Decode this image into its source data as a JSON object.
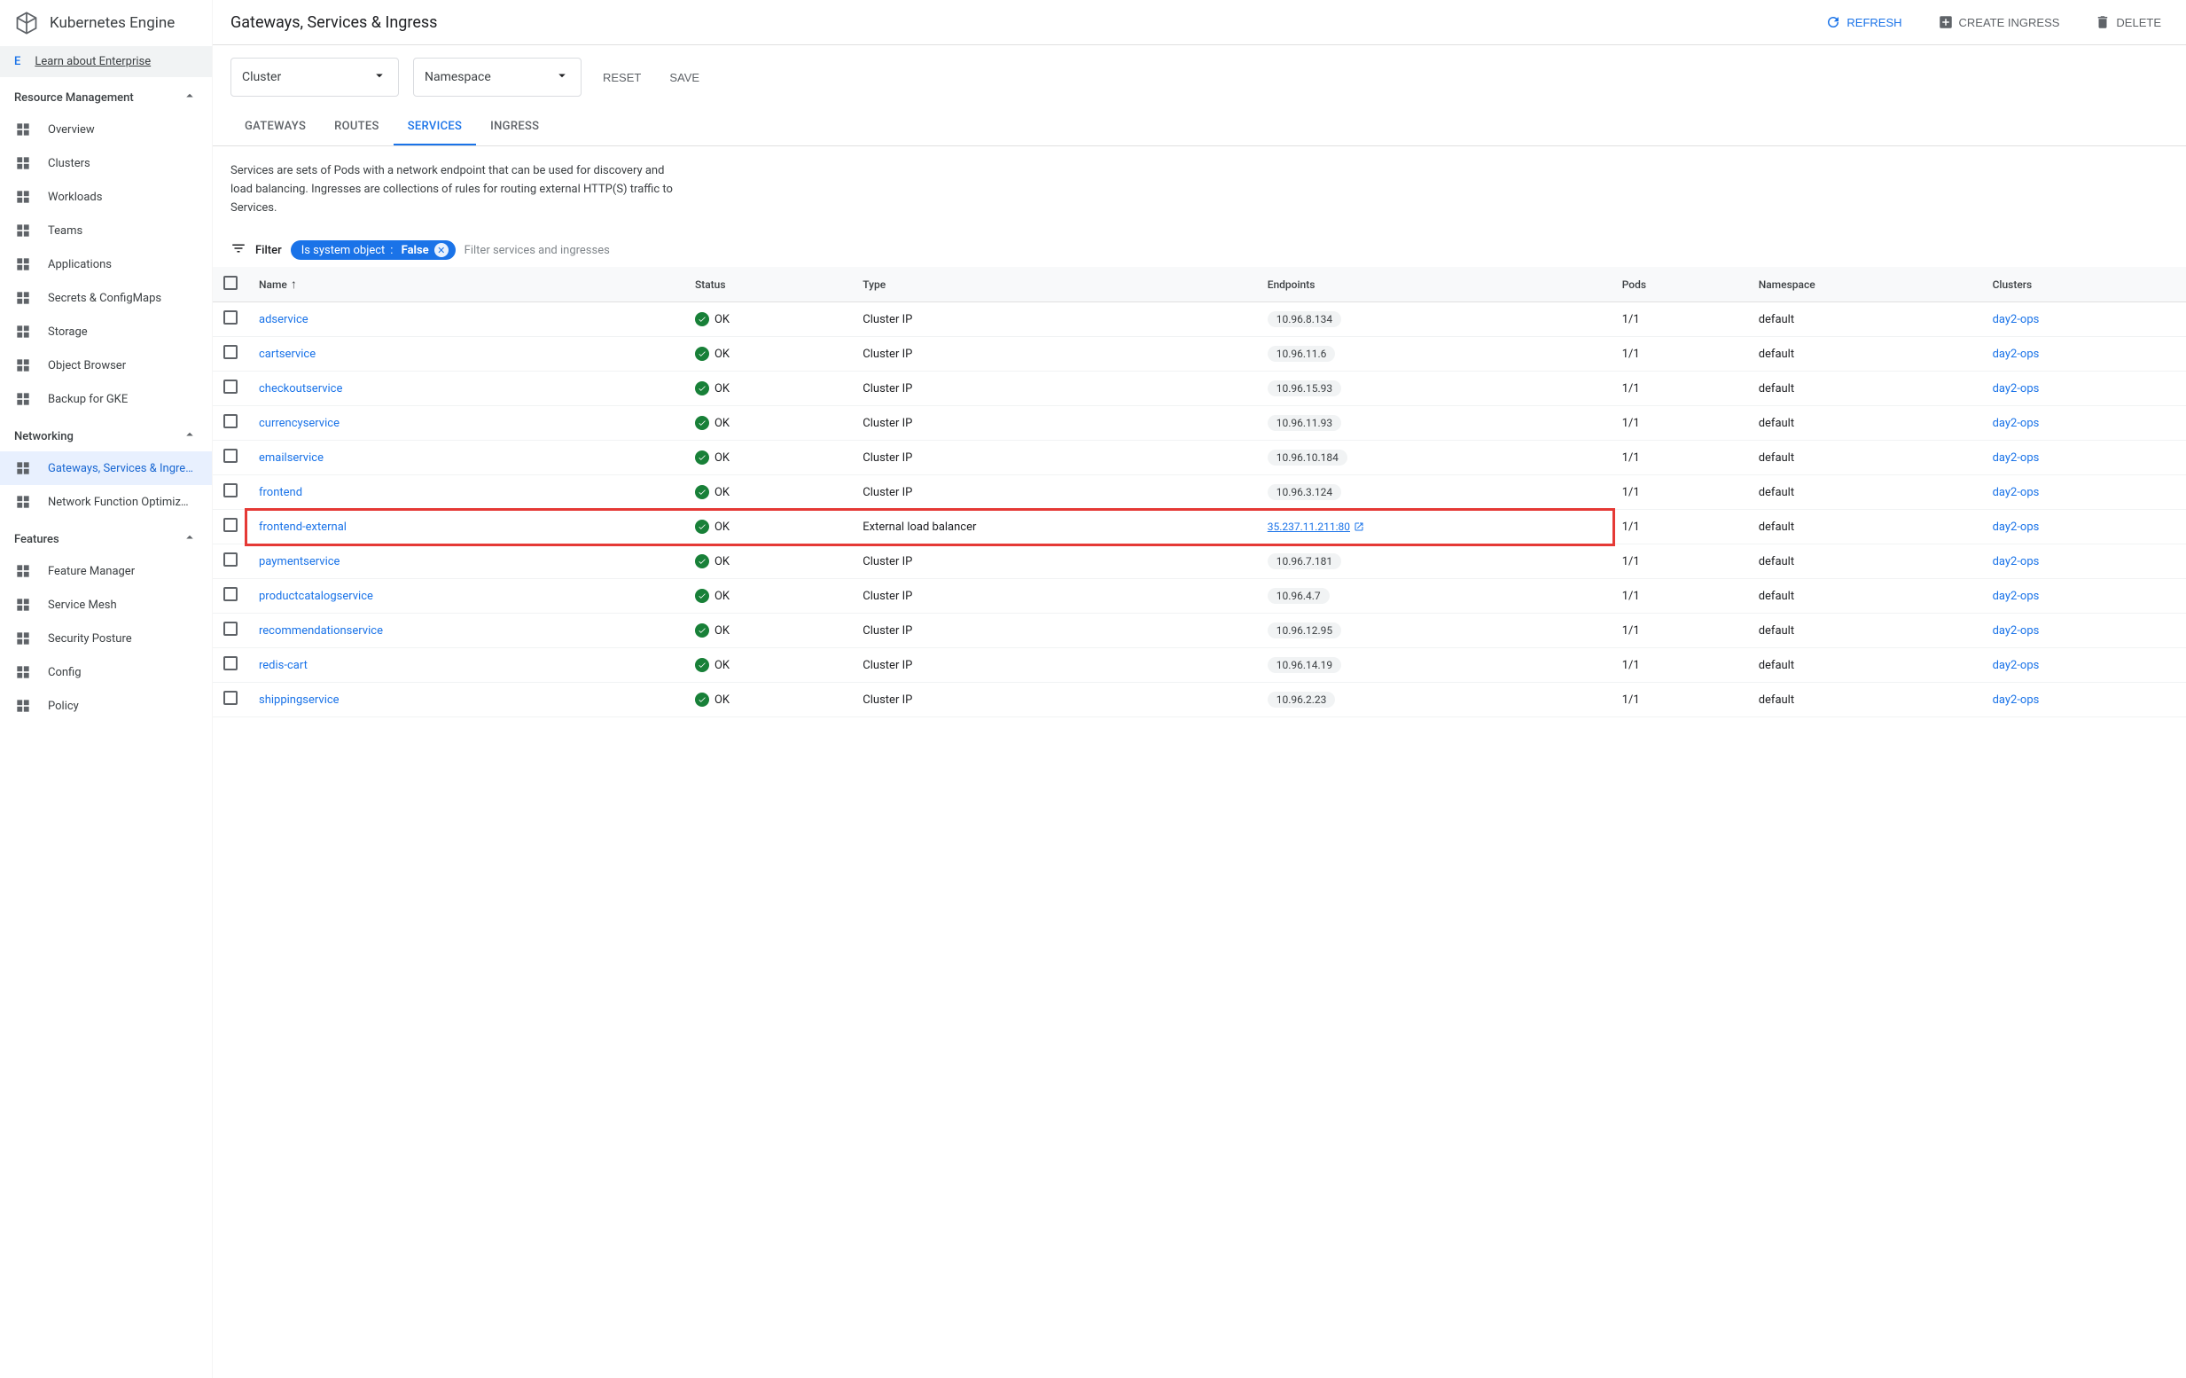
{
  "sidebar": {
    "title": "Kubernetes Engine",
    "enterprise": {
      "badge": "E",
      "text": "Learn about Enterprise"
    },
    "sections": [
      {
        "label": "Resource Management",
        "items": [
          {
            "label": "Overview",
            "icon": "overview"
          },
          {
            "label": "Clusters",
            "icon": "clusters"
          },
          {
            "label": "Workloads",
            "icon": "workloads"
          },
          {
            "label": "Teams",
            "icon": "teams"
          },
          {
            "label": "Applications",
            "icon": "apps"
          },
          {
            "label": "Secrets & ConfigMaps",
            "icon": "secrets"
          },
          {
            "label": "Storage",
            "icon": "storage"
          },
          {
            "label": "Object Browser",
            "icon": "browser"
          },
          {
            "label": "Backup for GKE",
            "icon": "backup"
          }
        ]
      },
      {
        "label": "Networking",
        "items": [
          {
            "label": "Gateways, Services & Ingre…",
            "icon": "gateways",
            "active": true
          },
          {
            "label": "Network Function Optimiz…",
            "icon": "nfo"
          }
        ]
      },
      {
        "label": "Features",
        "items": [
          {
            "label": "Feature Manager",
            "icon": "feature"
          },
          {
            "label": "Service Mesh",
            "icon": "mesh"
          },
          {
            "label": "Security Posture",
            "icon": "security"
          },
          {
            "label": "Config",
            "icon": "config"
          },
          {
            "label": "Policy",
            "icon": "policy"
          }
        ]
      }
    ]
  },
  "header": {
    "title": "Gateways, Services & Ingress",
    "actions": {
      "refresh": "REFRESH",
      "create": "CREATE INGRESS",
      "delete": "DELETE"
    }
  },
  "filters": {
    "cluster": "Cluster",
    "namespace": "Namespace",
    "reset": "RESET",
    "save": "SAVE"
  },
  "tabs": [
    "GATEWAYS",
    "ROUTES",
    "SERVICES",
    "INGRESS"
  ],
  "active_tab": "SERVICES",
  "description": "Services are sets of Pods with a network endpoint that can be used for discovery and load balancing. Ingresses are collections of rules for routing external HTTP(S) traffic to Services.",
  "filter_row": {
    "label": "Filter",
    "chip_key": "Is system object",
    "chip_value": "False",
    "placeholder": "Filter services and ingresses"
  },
  "table": {
    "columns": [
      "Name",
      "Status",
      "Type",
      "Endpoints",
      "Pods",
      "Namespace",
      "Clusters"
    ],
    "sort_col": "Name",
    "rows": [
      {
        "name": "adservice",
        "status": "OK",
        "type": "Cluster IP",
        "endpoint": "10.96.8.134",
        "pods": "1/1",
        "namespace": "default",
        "cluster": "day2-ops"
      },
      {
        "name": "cartservice",
        "status": "OK",
        "type": "Cluster IP",
        "endpoint": "10.96.11.6",
        "pods": "1/1",
        "namespace": "default",
        "cluster": "day2-ops"
      },
      {
        "name": "checkoutservice",
        "status": "OK",
        "type": "Cluster IP",
        "endpoint": "10.96.15.93",
        "pods": "1/1",
        "namespace": "default",
        "cluster": "day2-ops"
      },
      {
        "name": "currencyservice",
        "status": "OK",
        "type": "Cluster IP",
        "endpoint": "10.96.11.93",
        "pods": "1/1",
        "namespace": "default",
        "cluster": "day2-ops"
      },
      {
        "name": "emailservice",
        "status": "OK",
        "type": "Cluster IP",
        "endpoint": "10.96.10.184",
        "pods": "1/1",
        "namespace": "default",
        "cluster": "day2-ops"
      },
      {
        "name": "frontend",
        "status": "OK",
        "type": "Cluster IP",
        "endpoint": "10.96.3.124",
        "pods": "1/1",
        "namespace": "default",
        "cluster": "day2-ops"
      },
      {
        "name": "frontend-external",
        "status": "OK",
        "type": "External load balancer",
        "endpoint": "35.237.11.211:80",
        "endpoint_link": true,
        "pods": "1/1",
        "namespace": "default",
        "cluster": "day2-ops",
        "highlight": true
      },
      {
        "name": "paymentservice",
        "status": "OK",
        "type": "Cluster IP",
        "endpoint": "10.96.7.181",
        "pods": "1/1",
        "namespace": "default",
        "cluster": "day2-ops"
      },
      {
        "name": "productcatalogservice",
        "status": "OK",
        "type": "Cluster IP",
        "endpoint": "10.96.4.7",
        "pods": "1/1",
        "namespace": "default",
        "cluster": "day2-ops"
      },
      {
        "name": "recommendationservice",
        "status": "OK",
        "type": "Cluster IP",
        "endpoint": "10.96.12.95",
        "pods": "1/1",
        "namespace": "default",
        "cluster": "day2-ops"
      },
      {
        "name": "redis-cart",
        "status": "OK",
        "type": "Cluster IP",
        "endpoint": "10.96.14.19",
        "pods": "1/1",
        "namespace": "default",
        "cluster": "day2-ops"
      },
      {
        "name": "shippingservice",
        "status": "OK",
        "type": "Cluster IP",
        "endpoint": "10.96.2.23",
        "pods": "1/1",
        "namespace": "default",
        "cluster": "day2-ops"
      }
    ]
  },
  "colors": {
    "primary_blue": "#1a73e8",
    "status_green": "#188038",
    "highlight_red": "#e53935",
    "text": "#202124",
    "text_secondary": "#5f6368",
    "border": "#e0e0e0",
    "pill_bg": "#f1f3f4"
  }
}
